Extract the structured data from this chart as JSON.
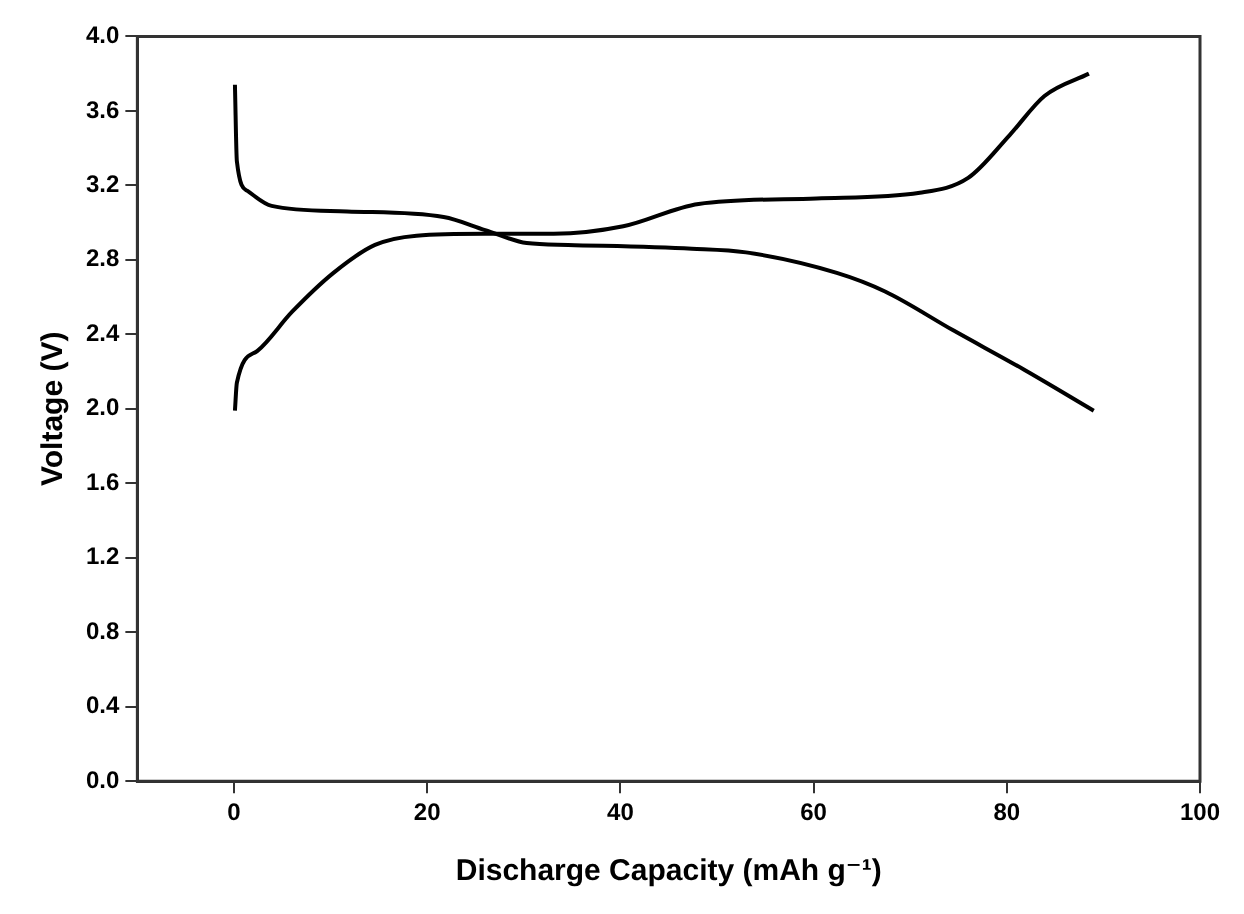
{
  "chart_data": {
    "type": "line",
    "xlabel": "Discharge Capacity (mAh g⁻¹)",
    "ylabel": "Voltage (V)",
    "xlim": [
      -10,
      100
    ],
    "xticks": [
      0,
      20,
      40,
      60,
      80,
      100
    ],
    "ylim": [
      0,
      4
    ],
    "yticks": [
      {
        "value": 0,
        "label": "0.0"
      },
      {
        "value": 0.4,
        "label": "0.4"
      },
      {
        "value": 0.8,
        "label": "0.8"
      },
      {
        "value": 1.2,
        "label": "1.2"
      },
      {
        "value": 1.6,
        "label": "1.6"
      },
      {
        "value": 2,
        "label": "2.0"
      },
      {
        "value": 2.4,
        "label": "2.4"
      },
      {
        "value": 2.8,
        "label": "2.8"
      },
      {
        "value": 3.2,
        "label": "3.2"
      },
      {
        "value": 3.6,
        "label": "3.6"
      },
      {
        "value": 4,
        "label": "4.0"
      }
    ],
    "grid": false,
    "legend": false,
    "marker": "none",
    "line_style": "solid",
    "series": [
      {
        "color": "#000000",
        "x": [
          0.1,
          0.3,
          1.4,
          3.9,
          11.7,
          21.7,
          26,
          30.3,
          34.6,
          47.4,
          53,
          62.4,
          67.4,
          74.5,
          81.8,
          89
        ],
        "values": [
          3.74,
          3.33,
          3.17,
          3.09,
          3.06,
          3.03,
          2.96,
          2.89,
          2.88,
          2.86,
          2.84,
          2.73,
          2.63,
          2.42,
          2.21,
          1.99
        ]
      },
      {
        "color": "#000000",
        "x": [
          0.1,
          0.3,
          2.4,
          6,
          10.3,
          14.6,
          18.9,
          26,
          33.1,
          40.3,
          48.1,
          60.3,
          71,
          76,
          80.3,
          83.9,
          88.5
        ],
        "values": [
          1.99,
          2.14,
          2.31,
          2.52,
          2.73,
          2.88,
          2.93,
          2.94,
          2.94,
          2.98,
          3.1,
          3.13,
          3.16,
          3.24,
          3.47,
          3.68,
          3.8
        ]
      }
    ]
  }
}
